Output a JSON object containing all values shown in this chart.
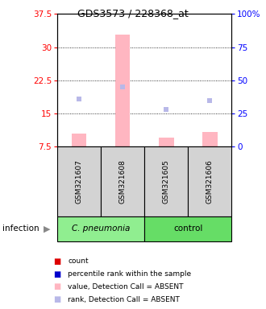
{
  "title": "GDS3573 / 228368_at",
  "samples": [
    "GSM321607",
    "GSM321608",
    "GSM321605",
    "GSM321606"
  ],
  "ylim_left": [
    7.5,
    37.5
  ],
  "ylim_right": [
    0,
    100
  ],
  "yticks_left": [
    7.5,
    15.0,
    22.5,
    30.0,
    37.5
  ],
  "yticks_right": [
    0,
    25,
    50,
    75,
    100
  ],
  "bar_values": [
    10.5,
    32.8,
    9.5,
    10.8
  ],
  "rank_values_pct": [
    36,
    45,
    28,
    35
  ],
  "bar_color_absent": "#FFB6C1",
  "rank_color_absent": "#B8B8E8",
  "bar_bottom": 7.5,
  "group_label_left": "C. pneumonia",
  "group_label_right": "control",
  "group_color_left": "#90EE90",
  "group_color_right": "#66DD66",
  "infection_label": "infection",
  "legend_items": [
    {
      "label": "count",
      "color": "#DD0000"
    },
    {
      "label": "percentile rank within the sample",
      "color": "#0000CC"
    },
    {
      "label": "value, Detection Call = ABSENT",
      "color": "#FFB6C1"
    },
    {
      "label": "rank, Detection Call = ABSENT",
      "color": "#B8B8E8"
    }
  ]
}
